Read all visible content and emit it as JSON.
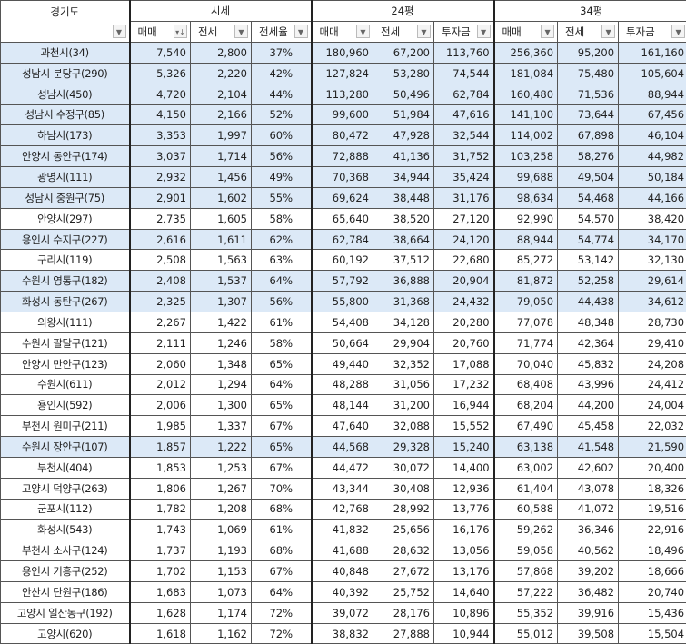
{
  "header": {
    "region_label": "경기도",
    "groups": [
      "시세",
      "24평",
      "34평"
    ],
    "columns": [
      "매매",
      "전세",
      "전세율",
      "매매",
      "전세",
      "투자금",
      "매매",
      "전세",
      "투자금"
    ],
    "sorted_column_icon": "sort-descending-icon",
    "filter_icon": "dropdown-arrow-icon"
  },
  "highlight_color": "#dce9f7",
  "rows": [
    {
      "name": "과천시(34)",
      "v": [
        "7,540",
        "2,800",
        "37%",
        "180,960",
        "67,200",
        "113,760",
        "256,360",
        "95,200",
        "161,160"
      ],
      "highlighted": true
    },
    {
      "name": "성남시 분당구(290)",
      "v": [
        "5,326",
        "2,220",
        "42%",
        "127,824",
        "53,280",
        "74,544",
        "181,084",
        "75,480",
        "105,604"
      ],
      "highlighted": true
    },
    {
      "name": "성남시(450)",
      "v": [
        "4,720",
        "2,104",
        "44%",
        "113,280",
        "50,496",
        "62,784",
        "160,480",
        "71,536",
        "88,944"
      ],
      "highlighted": true
    },
    {
      "name": "성남시 수정구(85)",
      "v": [
        "4,150",
        "2,166",
        "52%",
        "99,600",
        "51,984",
        "47,616",
        "141,100",
        "73,644",
        "67,456"
      ],
      "highlighted": true
    },
    {
      "name": "하남시(173)",
      "v": [
        "3,353",
        "1,997",
        "60%",
        "80,472",
        "47,928",
        "32,544",
        "114,002",
        "67,898",
        "46,104"
      ],
      "highlighted": true
    },
    {
      "name": "안양시 동안구(174)",
      "v": [
        "3,037",
        "1,714",
        "56%",
        "72,888",
        "41,136",
        "31,752",
        "103,258",
        "58,276",
        "44,982"
      ],
      "highlighted": true
    },
    {
      "name": "광명시(111)",
      "v": [
        "2,932",
        "1,456",
        "49%",
        "70,368",
        "34,944",
        "35,424",
        "99,688",
        "49,504",
        "50,184"
      ],
      "highlighted": true
    },
    {
      "name": "성남시 중원구(75)",
      "v": [
        "2,901",
        "1,602",
        "55%",
        "69,624",
        "38,448",
        "31,176",
        "98,634",
        "54,468",
        "44,166"
      ],
      "highlighted": true
    },
    {
      "name": "안양시(297)",
      "v": [
        "2,735",
        "1,605",
        "58%",
        "65,640",
        "38,520",
        "27,120",
        "92,990",
        "54,570",
        "38,420"
      ],
      "highlighted": false
    },
    {
      "name": "용인시 수지구(227)",
      "v": [
        "2,616",
        "1,611",
        "62%",
        "62,784",
        "38,664",
        "24,120",
        "88,944",
        "54,774",
        "34,170"
      ],
      "highlighted": true
    },
    {
      "name": "구리시(119)",
      "v": [
        "2,508",
        "1,563",
        "63%",
        "60,192",
        "37,512",
        "22,680",
        "85,272",
        "53,142",
        "32,130"
      ],
      "highlighted": false
    },
    {
      "name": "수원시 영통구(182)",
      "v": [
        "2,408",
        "1,537",
        "64%",
        "57,792",
        "36,888",
        "20,904",
        "81,872",
        "52,258",
        "29,614"
      ],
      "highlighted": true
    },
    {
      "name": "화성시 동탄구(267)",
      "v": [
        "2,325",
        "1,307",
        "56%",
        "55,800",
        "31,368",
        "24,432",
        "79,050",
        "44,438",
        "34,612"
      ],
      "highlighted": true
    },
    {
      "name": "의왕시(111)",
      "v": [
        "2,267",
        "1,422",
        "61%",
        "54,408",
        "34,128",
        "20,280",
        "77,078",
        "48,348",
        "28,730"
      ],
      "highlighted": false
    },
    {
      "name": "수원시 팔달구(121)",
      "v": [
        "2,111",
        "1,246",
        "58%",
        "50,664",
        "29,904",
        "20,760",
        "71,774",
        "42,364",
        "29,410"
      ],
      "highlighted": false
    },
    {
      "name": "안양시 만안구(123)",
      "v": [
        "2,060",
        "1,348",
        "65%",
        "49,440",
        "32,352",
        "17,088",
        "70,040",
        "45,832",
        "24,208"
      ],
      "highlighted": false
    },
    {
      "name": "수원시(611)",
      "v": [
        "2,012",
        "1,294",
        "64%",
        "48,288",
        "31,056",
        "17,232",
        "68,408",
        "43,996",
        "24,412"
      ],
      "highlighted": false
    },
    {
      "name": "용인시(592)",
      "v": [
        "2,006",
        "1,300",
        "65%",
        "48,144",
        "31,200",
        "16,944",
        "68,204",
        "44,200",
        "24,004"
      ],
      "highlighted": false
    },
    {
      "name": "부천시 원미구(211)",
      "v": [
        "1,985",
        "1,337",
        "67%",
        "47,640",
        "32,088",
        "15,552",
        "67,490",
        "45,458",
        "22,032"
      ],
      "highlighted": false
    },
    {
      "name": "수원시 장안구(107)",
      "v": [
        "1,857",
        "1,222",
        "65%",
        "44,568",
        "29,328",
        "15,240",
        "63,138",
        "41,548",
        "21,590"
      ],
      "highlighted": true
    },
    {
      "name": "부천시(404)",
      "v": [
        "1,853",
        "1,253",
        "67%",
        "44,472",
        "30,072",
        "14,400",
        "63,002",
        "42,602",
        "20,400"
      ],
      "highlighted": false
    },
    {
      "name": "고양시 덕양구(263)",
      "v": [
        "1,806",
        "1,267",
        "70%",
        "43,344",
        "30,408",
        "12,936",
        "61,404",
        "43,078",
        "18,326"
      ],
      "highlighted": false
    },
    {
      "name": "군포시(112)",
      "v": [
        "1,782",
        "1,208",
        "68%",
        "42,768",
        "28,992",
        "13,776",
        "60,588",
        "41,072",
        "19,516"
      ],
      "highlighted": false
    },
    {
      "name": "화성시(543)",
      "v": [
        "1,743",
        "1,069",
        "61%",
        "41,832",
        "25,656",
        "16,176",
        "59,262",
        "36,346",
        "22,916"
      ],
      "highlighted": false
    },
    {
      "name": "부천시 소사구(124)",
      "v": [
        "1,737",
        "1,193",
        "68%",
        "41,688",
        "28,632",
        "13,056",
        "59,058",
        "40,562",
        "18,496"
      ],
      "highlighted": false
    },
    {
      "name": "용인시 기흥구(252)",
      "v": [
        "1,702",
        "1,153",
        "67%",
        "40,848",
        "27,672",
        "13,176",
        "57,868",
        "39,202",
        "18,666"
      ],
      "highlighted": false
    },
    {
      "name": "안산시 단원구(186)",
      "v": [
        "1,683",
        "1,073",
        "64%",
        "40,392",
        "25,752",
        "14,640",
        "57,222",
        "36,482",
        "20,740"
      ],
      "highlighted": false
    },
    {
      "name": "고양시 일산동구(192)",
      "v": [
        "1,628",
        "1,174",
        "72%",
        "39,072",
        "28,176",
        "10,896",
        "55,352",
        "39,916",
        "15,436"
      ],
      "highlighted": false
    },
    {
      "name": "고양시(620)",
      "v": [
        "1,618",
        "1,162",
        "72%",
        "38,832",
        "27,888",
        "10,944",
        "55,012",
        "39,508",
        "15,504"
      ],
      "highlighted": false
    }
  ]
}
